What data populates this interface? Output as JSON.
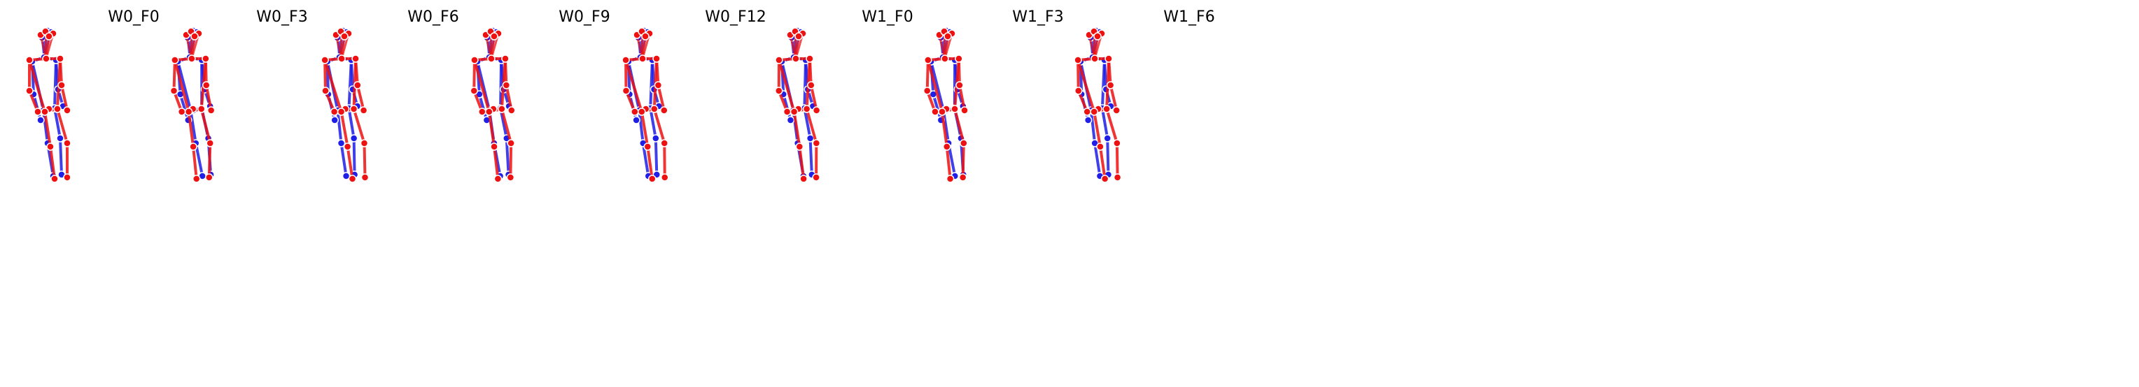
{
  "figure": {
    "colors": {
      "blue_skeleton": "#1f1fe8",
      "red_skeleton": "#ee1111",
      "blend_skeleton": "#9a1c8a",
      "background": "#ffffff"
    },
    "panels": [
      {
        "title": "W0_F0"
      },
      {
        "title": "W0_F3"
      },
      {
        "title": "W0_F6"
      },
      {
        "title": "W0_F9"
      },
      {
        "title": "W0_F12"
      },
      {
        "title": "W1_F0"
      },
      {
        "title": "W1_F3"
      },
      {
        "title": "W1_F6"
      }
    ]
  }
}
